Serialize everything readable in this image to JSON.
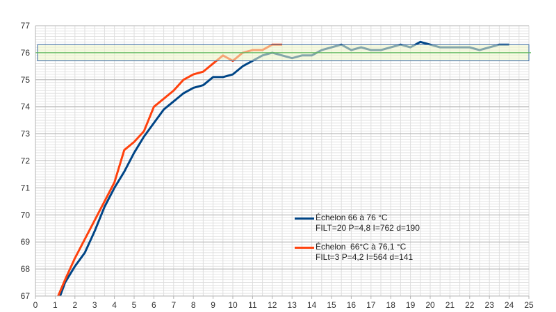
{
  "chart_data": {
    "type": "line",
    "title": "",
    "xlabel": "",
    "ylabel": "",
    "xlim": [
      0,
      25
    ],
    "ylim": [
      67,
      77
    ],
    "x_ticks": [
      0,
      1,
      2,
      3,
      4,
      5,
      6,
      7,
      8,
      9,
      10,
      11,
      12,
      13,
      14,
      15,
      16,
      17,
      18,
      19,
      20,
      21,
      22,
      23,
      24,
      25
    ],
    "y_ticks": [
      67,
      68,
      69,
      70,
      71,
      72,
      73,
      74,
      75,
      76,
      77
    ],
    "grid": true,
    "legend_position": "center-right",
    "target_line": {
      "y": 76,
      "color": "#5cb85c"
    },
    "target_band": {
      "ymin": 75.7,
      "ymax": 76.3,
      "fill": "#eef5c8",
      "stroke": "#3465a4"
    },
    "series": [
      {
        "name": "Échelon 66 à 76 °C",
        "name_line2": "FILT=20 P=4,8 I=762 d=190",
        "color": "#004586",
        "x": [
          1.25,
          1.5,
          2,
          2.5,
          3,
          3.5,
          4,
          4.5,
          5,
          5.5,
          6,
          6.5,
          7,
          7.5,
          8,
          8.5,
          9,
          9.5,
          10,
          10.5,
          11,
          11.5,
          12,
          12.5,
          13,
          13.5,
          14,
          14.5,
          15,
          15.5,
          16,
          16.5,
          17,
          17.5,
          18,
          18.5,
          19,
          19.5,
          20,
          20.5,
          21,
          21.5,
          22,
          22.5,
          23,
          23.5,
          24
        ],
        "y": [
          67.0,
          67.5,
          68.1,
          68.6,
          69.4,
          70.3,
          71.0,
          71.6,
          72.3,
          72.9,
          73.4,
          73.9,
          74.2,
          74.5,
          74.7,
          74.8,
          75.1,
          75.1,
          75.2,
          75.5,
          75.7,
          75.9,
          76.0,
          75.9,
          75.8,
          75.9,
          75.9,
          76.1,
          76.2,
          76.3,
          76.1,
          76.2,
          76.1,
          76.1,
          76.2,
          76.3,
          76.2,
          76.4,
          76.3,
          76.2,
          76.2,
          76.2,
          76.2,
          76.1,
          76.2,
          76.3,
          76.3
        ]
      },
      {
        "name": "Échelon  66°C à 76,1 °C",
        "name_line2": "FILt=3 P=4,2 I=564 d=141",
        "color": "#ff420e",
        "x": [
          1.15,
          1.5,
          2,
          2.5,
          3,
          3.5,
          4,
          4.5,
          5,
          5.5,
          6,
          6.5,
          7,
          7.5,
          8,
          8.5,
          9,
          9.5,
          10,
          10.5,
          11,
          11.5,
          12,
          12.5
        ],
        "y": [
          67.0,
          67.6,
          68.4,
          69.1,
          69.8,
          70.5,
          71.2,
          72.4,
          72.7,
          73.1,
          74.0,
          74.3,
          74.6,
          75.0,
          75.2,
          75.3,
          75.6,
          75.9,
          75.7,
          76.0,
          76.1,
          76.1,
          76.3,
          76.3
        ]
      }
    ]
  }
}
